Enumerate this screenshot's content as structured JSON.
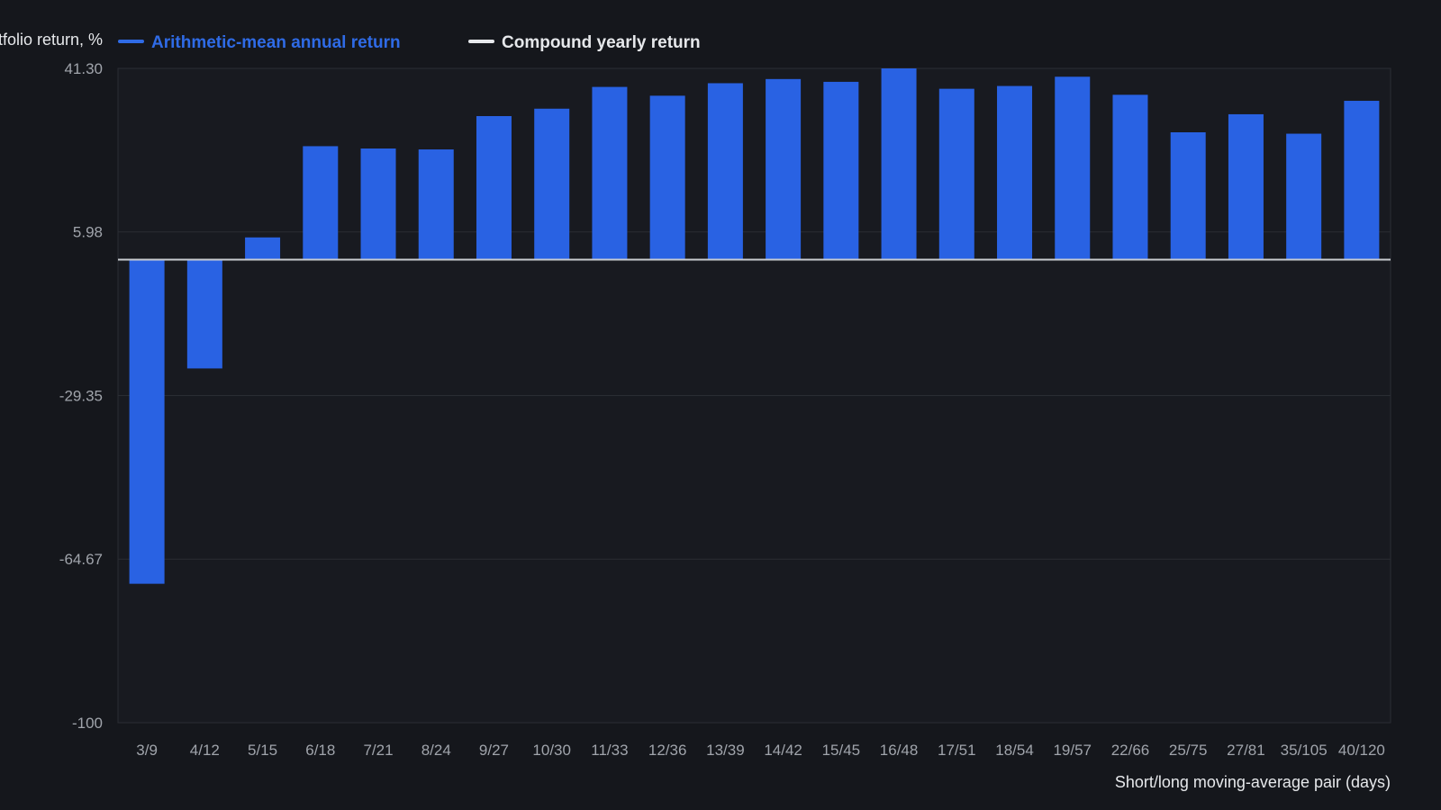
{
  "colors": {
    "background": "#15171c",
    "plot_background": "#181a20",
    "bar": "#2962e3",
    "legend_bar_text": "#2f6be6",
    "zero_line": "#c9ccd1",
    "grid": "#2a2d33",
    "tick_text": "#a0a4ab",
    "title_text": "#e6e8eb"
  },
  "chart_data": {
    "type": "bar",
    "ylabel": "Portfolio return, %",
    "xlabel": "Short/long moving-average pair (days)",
    "legend": [
      {
        "name": "Arithmetic-mean annual return",
        "color": "#2f6be6",
        "marker": "bar"
      },
      {
        "name": "Compound yearly return",
        "color": "#e6e8eb",
        "marker": "line"
      }
    ],
    "legend_placement": "top-left",
    "ylim": [
      -100,
      41.3
    ],
    "yticks": [
      "41.30",
      "5.98",
      "-29.35",
      "-64.67",
      "-100"
    ],
    "ytick_values": [
      41.3,
      5.98,
      -29.35,
      -64.67,
      -100
    ],
    "grid": true,
    "categories": [
      "3/9",
      "4/12",
      "5/15",
      "6/18",
      "7/21",
      "8/24",
      "9/27",
      "10/30",
      "11/33",
      "12/36",
      "13/39",
      "14/42",
      "15/45",
      "16/48",
      "17/51",
      "18/54",
      "19/57",
      "22/66",
      "25/75",
      "27/81",
      "35/105",
      "40/120"
    ],
    "series": [
      {
        "name": "Arithmetic-mean annual return",
        "values": [
          -70.0,
          -23.5,
          4.8,
          24.5,
          24.0,
          23.8,
          31.0,
          32.6,
          37.3,
          35.4,
          38.1,
          39.0,
          38.4,
          41.3,
          36.9,
          37.5,
          39.5,
          35.6,
          27.5,
          31.4,
          27.2,
          34.3
        ]
      }
    ],
    "compound_line_value": 0
  }
}
